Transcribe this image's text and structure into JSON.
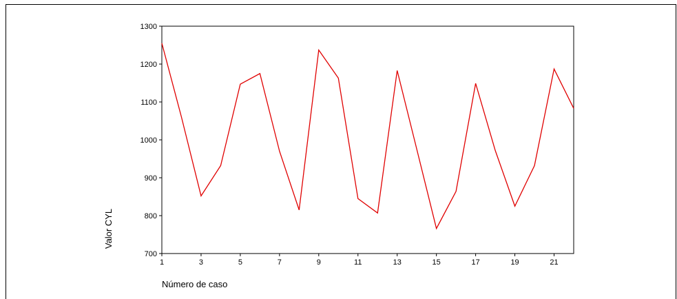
{
  "chart_data": {
    "type": "line",
    "title": "",
    "xlabel": "Número de caso",
    "ylabel": "Valor CYL",
    "x": [
      1,
      2,
      3,
      4,
      5,
      6,
      7,
      8,
      9,
      10,
      11,
      12,
      13,
      14,
      15,
      16,
      17,
      18,
      19,
      20,
      21,
      22
    ],
    "series": [
      {
        "values": [
          1255,
          1060,
          852,
          932,
          1147,
          1175,
          970,
          815,
          1237,
          1163,
          845,
          807,
          1183,
          975,
          766,
          864,
          1149,
          972,
          825,
          932,
          1187,
          1083
        ],
        "color": "#e00000"
      }
    ],
    "xlim": [
      1,
      22
    ],
    "ylim": [
      700,
      1300
    ],
    "x_ticks": [
      "1",
      "3",
      "5",
      "7",
      "9",
      "11",
      "13",
      "15",
      "17",
      "19",
      "21"
    ],
    "y_ticks": [
      "700",
      "800",
      "900",
      "1000",
      "1100",
      "1200",
      "1300"
    ],
    "grid": false,
    "legend": "none"
  }
}
